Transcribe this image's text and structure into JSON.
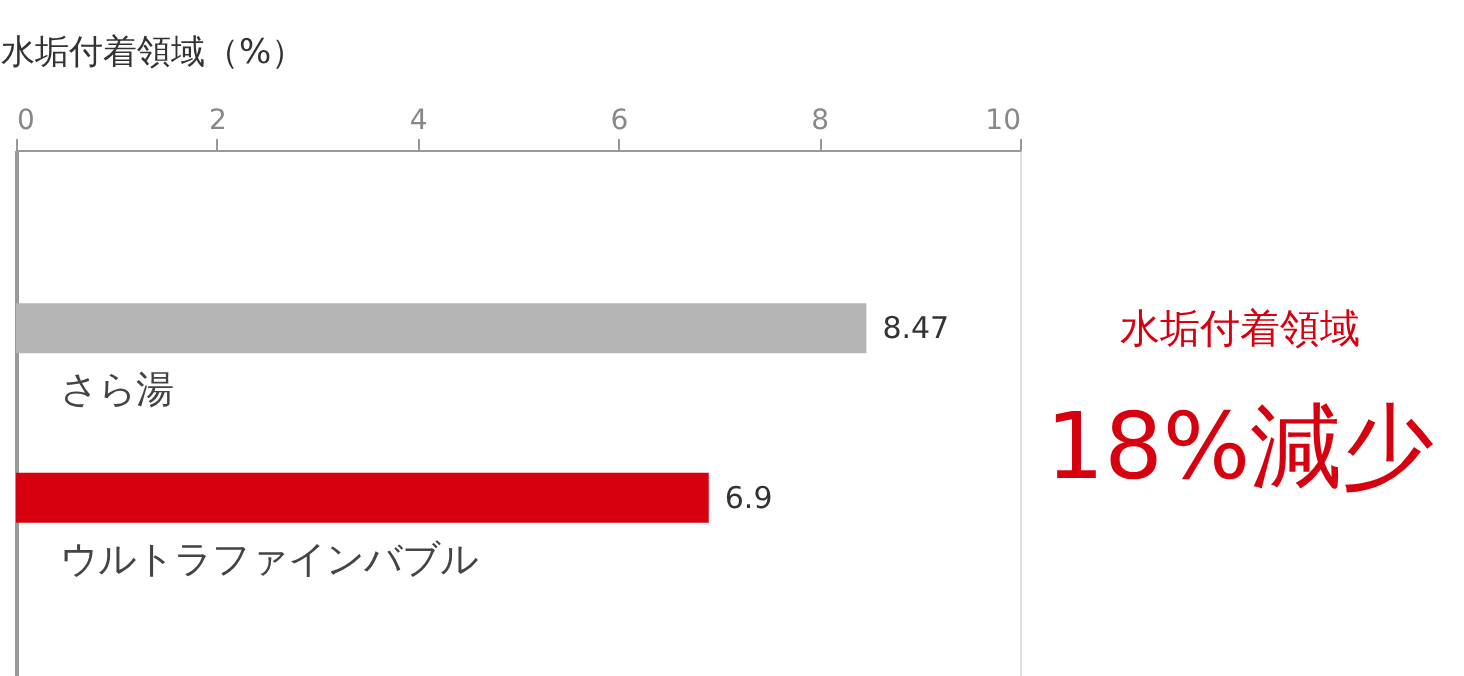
{
  "chart_data": {
    "type": "bar",
    "orientation": "horizontal",
    "xlabel": "水垢付着領域（%）",
    "categories": [
      "さら湯",
      "ウルトラファインバブル"
    ],
    "values": [
      8.47,
      6.9
    ],
    "colors": [
      "#b5b5b5",
      "#d7000f"
    ],
    "xlim": [
      0,
      10
    ],
    "xticks": [
      0,
      2,
      4,
      6,
      8,
      10
    ],
    "grid": false,
    "data_labels": true,
    "annotations": [
      "水垢付着領域",
      "18%減少"
    ]
  }
}
